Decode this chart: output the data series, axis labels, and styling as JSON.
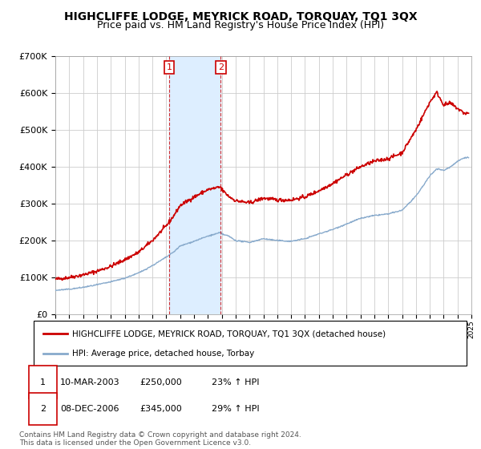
{
  "title": "HIGHCLIFFE LODGE, MEYRICK ROAD, TORQUAY, TQ1 3QX",
  "subtitle": "Price paid vs. HM Land Registry's House Price Index (HPI)",
  "legend_label_red": "HIGHCLIFFE LODGE, MEYRICK ROAD, TORQUAY, TQ1 3QX (detached house)",
  "legend_label_blue": "HPI: Average price, detached house, Torbay",
  "transaction1_date": "10-MAR-2003",
  "transaction1_price": "£250,000",
  "transaction1_hpi": "23% ↑ HPI",
  "transaction2_date": "08-DEC-2006",
  "transaction2_price": "£345,000",
  "transaction2_hpi": "29% ↑ HPI",
  "footer": "Contains HM Land Registry data © Crown copyright and database right 2024.\nThis data is licensed under the Open Government Licence v3.0.",
  "xlim": [
    1995,
    2025
  ],
  "ylim": [
    0,
    700000
  ],
  "yticks": [
    0,
    100000,
    200000,
    300000,
    400000,
    500000,
    600000,
    700000
  ],
  "ytick_labels": [
    "£0",
    "£100K",
    "£200K",
    "£300K",
    "£400K",
    "£500K",
    "£600K",
    "£700K"
  ],
  "transaction1_x": 2003.2,
  "transaction2_x": 2006.92,
  "transaction1_y": 250000,
  "transaction2_y": 345000,
  "red_color": "#cc0000",
  "blue_color": "#88aacc",
  "shade_color": "#ddeeff",
  "grid_color": "#cccccc",
  "background_color": "#ffffff",
  "title_fontsize": 10,
  "subtitle_fontsize": 9
}
